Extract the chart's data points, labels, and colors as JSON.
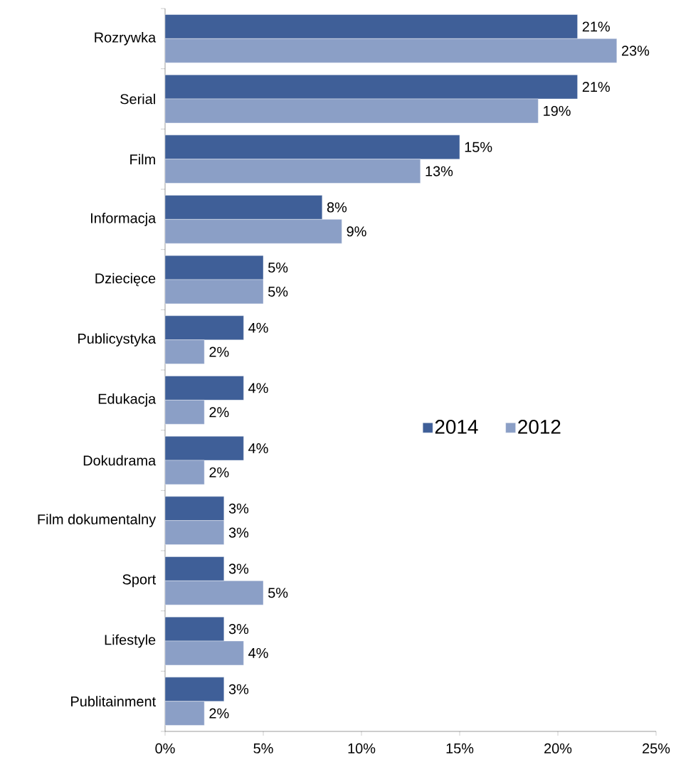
{
  "chart_data": {
    "type": "bar",
    "orientation": "horizontal",
    "categories": [
      "Rozrywka",
      "Serial",
      "Film",
      "Informacja",
      "Dziecięce",
      "Publicystyka",
      "Edukacja",
      "Dokudrama",
      "Film dokumentalny",
      "Sport",
      "Lifestyle",
      "Publitainment"
    ],
    "series": [
      {
        "name": "2014",
        "color": "#3f5f98",
        "values": [
          21,
          21,
          15,
          8,
          5,
          4,
          4,
          4,
          3,
          3,
          3,
          3
        ],
        "value_labels": [
          "21%",
          "21%",
          "15%",
          "8%",
          "5%",
          "4%",
          "4%",
          "4%",
          "3%",
          "3%",
          "3%",
          "3%"
        ]
      },
      {
        "name": "2012",
        "color": "#8b9fc6",
        "values": [
          23,
          19,
          13,
          9,
          5,
          2,
          2,
          2,
          3,
          5,
          4,
          2
        ],
        "value_labels": [
          "23%",
          "19%",
          "13%",
          "9%",
          "5%",
          "2%",
          "2%",
          "2%",
          "3%",
          "5%",
          "4%",
          "2%"
        ]
      }
    ],
    "xlim": [
      0,
      25
    ],
    "xticks": [
      {
        "value": 0,
        "label": "0%"
      },
      {
        "value": 5,
        "label": "5%"
      },
      {
        "value": 10,
        "label": "10%"
      },
      {
        "value": 15,
        "label": "15%"
      },
      {
        "value": 20,
        "label": "20%"
      },
      {
        "value": 25,
        "label": "25%"
      }
    ],
    "legend": "right"
  }
}
